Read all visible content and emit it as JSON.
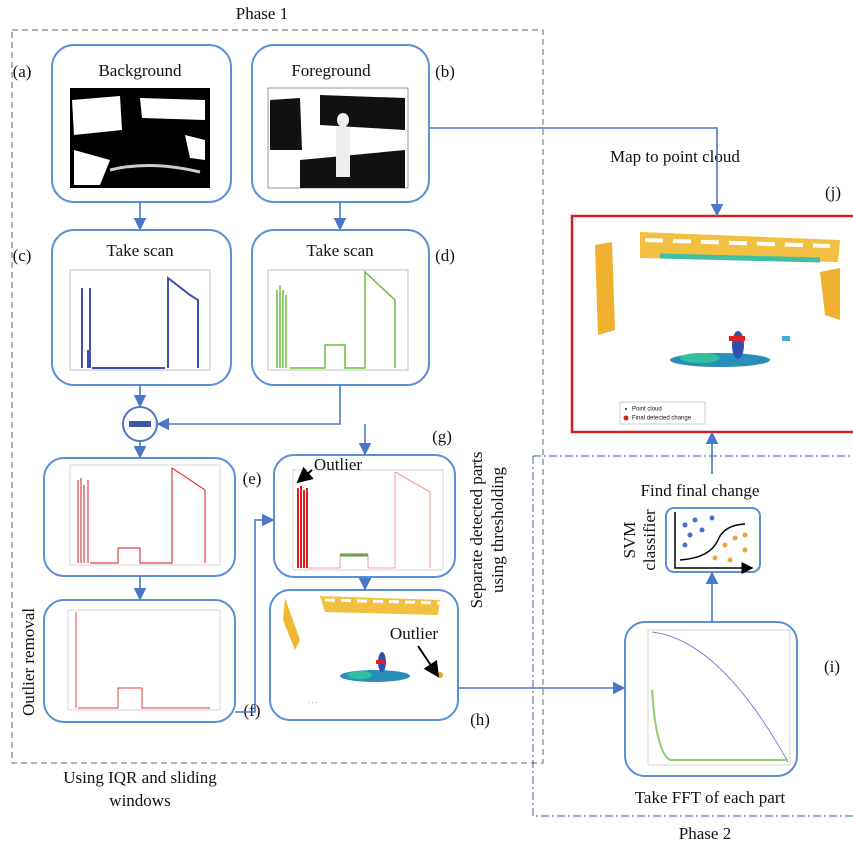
{
  "phase1": "Phase 1",
  "phase2": "Phase 2",
  "panels": {
    "a": {
      "label": "(a)",
      "title": "Background"
    },
    "b": {
      "label": "(b)",
      "title": "Foreground"
    },
    "c": {
      "label": "(c)",
      "title": "Take scan"
    },
    "d": {
      "label": "(d)",
      "title": "Take scan"
    },
    "e": {
      "label": "(e)"
    },
    "f": {
      "label": "(f)",
      "side": "Outlier removal",
      "caption": [
        "Using IQR and sliding",
        "windows"
      ]
    },
    "g": {
      "label": "(g)",
      "annotation": "Outlier",
      "side": [
        "Separate detected parts",
        "using thresholding"
      ]
    },
    "h": {
      "label": "(h)",
      "annotation": "Outlier"
    },
    "i": {
      "label": "(i)",
      "caption": "Take FFT of each part"
    },
    "j": {
      "label": "(j)",
      "legend": [
        "Point cloud",
        "Final detected change"
      ]
    }
  },
  "map_label": "Map to point cloud",
  "svm": {
    "title": "Find final change",
    "side": [
      "SVM",
      "classifier"
    ]
  }
}
